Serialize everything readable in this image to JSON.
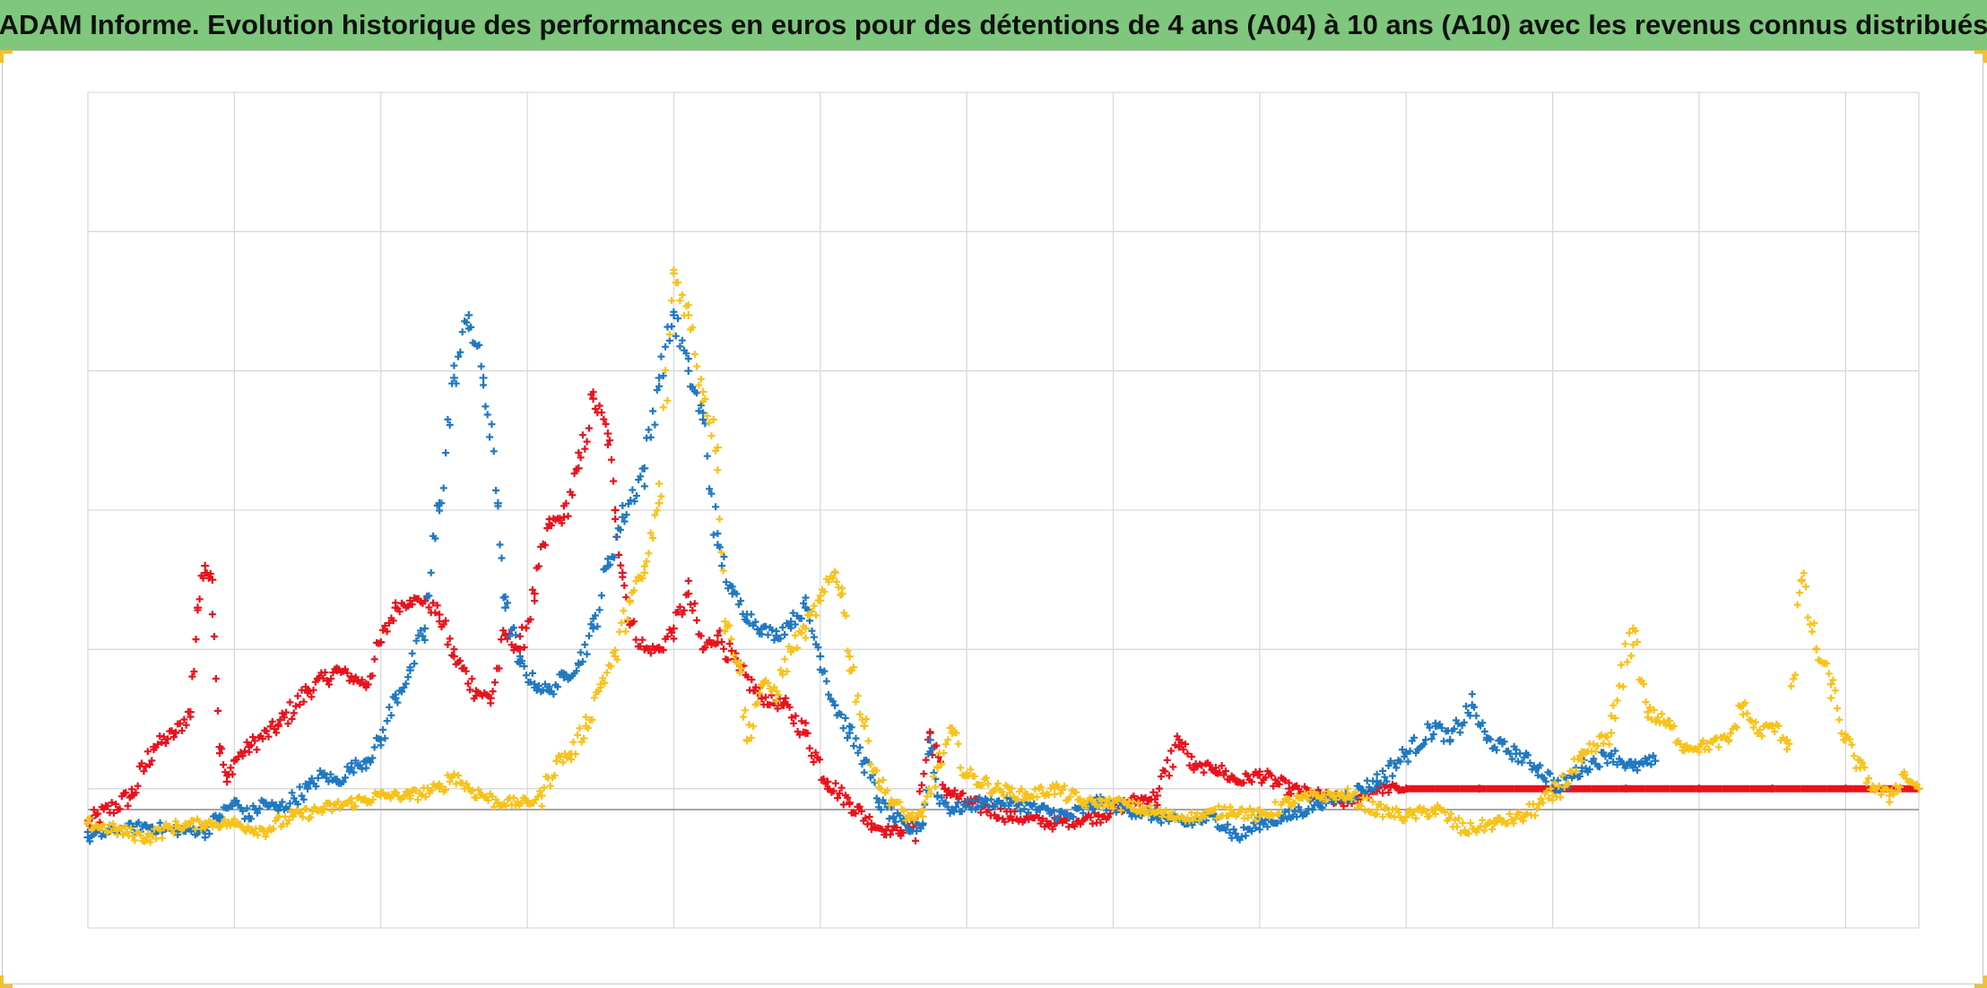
{
  "title": "ADAM Informe. Evolution historique des performances en euros pour des détentions de 4 ans (A04) à 10 ans (A10) avec les revenus connus distribués",
  "colors": {
    "title_bar": "#7ec77c",
    "frame_corner": "#f2c12e",
    "grid": "#d9d9d9",
    "zero_line": "#a6a6a6",
    "red": "#e8121d",
    "blue": "#1f78c1",
    "yellow": "#f7c21a"
  },
  "chart_data": {
    "type": "scatter",
    "marker": "plus",
    "title": "ADAM Informe. Evolution historique des performances en euros pour des détentions de 4 ans (A04) à 10 ans (A10) avec les revenus connus distribués",
    "xlabel": "",
    "ylabel": "",
    "xlim": [
      0,
      12.5
    ],
    "ylim": [
      -0.85,
      5.15
    ],
    "x_gridlines": [
      0,
      1,
      2,
      3,
      4,
      5,
      6,
      7,
      8,
      9,
      10,
      11,
      12,
      12.5
    ],
    "y_gridlines": [
      -0.85,
      0.15,
      1.15,
      2.15,
      3.15,
      4.15,
      5.15
    ],
    "zero_line": 0,
    "grid": true,
    "legend": "none",
    "series": [
      {
        "color": "#e8121d",
        "points": [
          [
            0,
            -0.1
          ],
          [
            0.3,
            0.1
          ],
          [
            0.45,
            0.45
          ],
          [
            0.6,
            0.55
          ],
          [
            0.7,
            0.7
          ],
          [
            0.75,
            1.45
          ],
          [
            0.8,
            1.75
          ],
          [
            0.85,
            1.65
          ],
          [
            0.9,
            0.45
          ],
          [
            0.95,
            0.2
          ],
          [
            1.0,
            0.35
          ],
          [
            1.1,
            0.45
          ],
          [
            1.3,
            0.6
          ],
          [
            1.5,
            0.85
          ],
          [
            1.7,
            1.0
          ],
          [
            1.8,
            0.95
          ],
          [
            1.9,
            0.9
          ],
          [
            2.0,
            1.2
          ],
          [
            2.1,
            1.45
          ],
          [
            2.2,
            1.5
          ],
          [
            2.3,
            1.5
          ],
          [
            2.4,
            1.4
          ],
          [
            2.5,
            1.1
          ],
          [
            2.65,
            0.85
          ],
          [
            2.75,
            0.8
          ],
          [
            2.85,
            1.25
          ],
          [
            2.95,
            1.15
          ],
          [
            3.05,
            1.55
          ],
          [
            3.15,
            2.05
          ],
          [
            3.25,
            2.1
          ],
          [
            3.35,
            2.45
          ],
          [
            3.45,
            2.95
          ],
          [
            3.55,
            2.7
          ],
          [
            3.6,
            2.15
          ],
          [
            3.65,
            1.7
          ],
          [
            3.7,
            1.35
          ],
          [
            3.8,
            1.15
          ],
          [
            3.9,
            1.15
          ],
          [
            4.0,
            1.3
          ],
          [
            4.1,
            1.55
          ],
          [
            4.2,
            1.15
          ],
          [
            4.3,
            1.25
          ],
          [
            4.45,
            1.0
          ],
          [
            4.6,
            0.8
          ],
          [
            4.75,
            0.75
          ],
          [
            4.9,
            0.55
          ],
          [
            5.05,
            0.2
          ],
          [
            5.2,
            0.05
          ],
          [
            5.35,
            -0.1
          ],
          [
            5.45,
            -0.15
          ],
          [
            5.55,
            -0.15
          ],
          [
            5.65,
            -0.1
          ],
          [
            5.75,
            0.55
          ],
          [
            5.85,
            0.15
          ],
          [
            6.0,
            0.05
          ],
          [
            6.3,
            -0.05
          ],
          [
            6.6,
            -0.1
          ],
          [
            6.9,
            -0.05
          ],
          [
            7.1,
            0.05
          ],
          [
            7.3,
            0.1
          ],
          [
            7.45,
            0.5
          ],
          [
            7.55,
            0.3
          ],
          [
            7.7,
            0.3
          ],
          [
            7.85,
            0.2
          ],
          [
            8.0,
            0.25
          ],
          [
            8.2,
            0.15
          ],
          [
            8.4,
            0.1
          ],
          [
            8.6,
            0.05
          ],
          [
            8.7,
            0.1
          ],
          [
            8.8,
            0.15
          ],
          [
            9.0,
            0.15
          ],
          [
            9.5,
            0.15
          ],
          [
            10.0,
            0.15
          ],
          [
            10.5,
            0.15
          ],
          [
            11.0,
            0.15
          ],
          [
            11.5,
            0.15
          ],
          [
            12.0,
            0.15
          ],
          [
            12.5,
            0.15
          ]
        ]
      },
      {
        "color": "#1f78c1",
        "points": [
          [
            0,
            -0.2
          ],
          [
            0.2,
            -0.15
          ],
          [
            0.4,
            -0.12
          ],
          [
            0.6,
            -0.15
          ],
          [
            0.8,
            -0.15
          ],
          [
            0.9,
            -0.05
          ],
          [
            1.0,
            0.05
          ],
          [
            1.1,
            -0.05
          ],
          [
            1.2,
            0.05
          ],
          [
            1.3,
            0.0
          ],
          [
            1.5,
            0.15
          ],
          [
            1.6,
            0.25
          ],
          [
            1.7,
            0.2
          ],
          [
            1.8,
            0.3
          ],
          [
            1.9,
            0.35
          ],
          [
            2.0,
            0.5
          ],
          [
            2.1,
            0.8
          ],
          [
            2.2,
            1.0
          ],
          [
            2.3,
            1.3
          ],
          [
            2.4,
            2.2
          ],
          [
            2.5,
            3.1
          ],
          [
            2.6,
            3.55
          ],
          [
            2.7,
            3.1
          ],
          [
            2.8,
            2.2
          ],
          [
            2.85,
            1.45
          ],
          [
            2.95,
            1.05
          ],
          [
            3.05,
            0.9
          ],
          [
            3.15,
            0.85
          ],
          [
            3.25,
            0.95
          ],
          [
            3.35,
            1.05
          ],
          [
            3.45,
            1.3
          ],
          [
            3.55,
            1.75
          ],
          [
            3.65,
            2.1
          ],
          [
            3.8,
            2.45
          ],
          [
            3.9,
            3.1
          ],
          [
            4.0,
            3.55
          ],
          [
            4.1,
            3.15
          ],
          [
            4.2,
            2.8
          ],
          [
            4.3,
            1.9
          ],
          [
            4.4,
            1.55
          ],
          [
            4.5,
            1.4
          ],
          [
            4.6,
            1.3
          ],
          [
            4.7,
            1.25
          ],
          [
            4.8,
            1.35
          ],
          [
            4.9,
            1.45
          ],
          [
            5.0,
            1.1
          ],
          [
            5.1,
            0.75
          ],
          [
            5.2,
            0.55
          ],
          [
            5.3,
            0.35
          ],
          [
            5.4,
            0.05
          ],
          [
            5.5,
            -0.05
          ],
          [
            5.6,
            -0.15
          ],
          [
            5.7,
            -0.1
          ],
          [
            5.75,
            0.5
          ],
          [
            5.8,
            0.1
          ],
          [
            5.9,
            0.0
          ],
          [
            6.1,
            0.05
          ],
          [
            6.3,
            0.05
          ],
          [
            6.5,
            0.0
          ],
          [
            6.7,
            -0.05
          ],
          [
            6.9,
            0.05
          ],
          [
            7.1,
            0.0
          ],
          [
            7.3,
            -0.05
          ],
          [
            7.5,
            -0.1
          ],
          [
            7.7,
            -0.05
          ],
          [
            7.85,
            -0.2
          ],
          [
            8.0,
            -0.1
          ],
          [
            8.2,
            -0.05
          ],
          [
            8.4,
            0.05
          ],
          [
            8.6,
            0.1
          ],
          [
            8.8,
            0.2
          ],
          [
            9.0,
            0.4
          ],
          [
            9.2,
            0.6
          ],
          [
            9.3,
            0.5
          ],
          [
            9.45,
            0.75
          ],
          [
            9.55,
            0.5
          ],
          [
            9.75,
            0.4
          ],
          [
            9.9,
            0.3
          ],
          [
            10.05,
            0.15
          ],
          [
            10.2,
            0.3
          ],
          [
            10.4,
            0.4
          ],
          [
            10.55,
            0.3
          ],
          [
            10.7,
            0.35
          ]
        ]
      },
      {
        "color": "#f7c21a",
        "points": [
          [
            0,
            -0.1
          ],
          [
            0.2,
            -0.15
          ],
          [
            0.4,
            -0.2
          ],
          [
            0.6,
            -0.12
          ],
          [
            0.8,
            -0.1
          ],
          [
            1.0,
            -0.1
          ],
          [
            1.2,
            -0.15
          ],
          [
            1.4,
            -0.05
          ],
          [
            1.6,
            0.0
          ],
          [
            1.8,
            0.05
          ],
          [
            2.0,
            0.1
          ],
          [
            2.2,
            0.1
          ],
          [
            2.4,
            0.15
          ],
          [
            2.5,
            0.25
          ],
          [
            2.6,
            0.15
          ],
          [
            2.8,
            0.05
          ],
          [
            3.0,
            0.05
          ],
          [
            3.1,
            0.1
          ],
          [
            3.2,
            0.35
          ],
          [
            3.3,
            0.4
          ],
          [
            3.4,
            0.6
          ],
          [
            3.5,
            0.9
          ],
          [
            3.6,
            1.1
          ],
          [
            3.7,
            1.5
          ],
          [
            3.8,
            1.7
          ],
          [
            3.9,
            2.2
          ],
          [
            4.0,
            3.85
          ],
          [
            4.1,
            3.55
          ],
          [
            4.2,
            3.0
          ],
          [
            4.3,
            2.6
          ],
          [
            4.35,
            1.35
          ],
          [
            4.45,
            1.05
          ],
          [
            4.5,
            0.5
          ],
          [
            4.6,
            0.9
          ],
          [
            4.7,
            0.85
          ],
          [
            4.8,
            1.15
          ],
          [
            4.9,
            1.3
          ],
          [
            5.0,
            1.5
          ],
          [
            5.1,
            1.7
          ],
          [
            5.15,
            1.55
          ],
          [
            5.2,
            1.1
          ],
          [
            5.3,
            0.6
          ],
          [
            5.4,
            0.2
          ],
          [
            5.5,
            0.05
          ],
          [
            5.6,
            -0.05
          ],
          [
            5.7,
            -0.05
          ],
          [
            5.8,
            0.3
          ],
          [
            5.9,
            0.55
          ],
          [
            6.0,
            0.25
          ],
          [
            6.2,
            0.15
          ],
          [
            6.4,
            0.1
          ],
          [
            6.6,
            0.15
          ],
          [
            6.8,
            0.05
          ],
          [
            7.0,
            0.05
          ],
          [
            7.2,
            0.0
          ],
          [
            7.4,
            -0.05
          ],
          [
            7.6,
            -0.05
          ],
          [
            7.8,
            0.0
          ],
          [
            8.0,
            -0.05
          ],
          [
            8.2,
            0.05
          ],
          [
            8.4,
            0.1
          ],
          [
            8.6,
            0.1
          ],
          [
            8.8,
            0.0
          ],
          [
            9.0,
            -0.05
          ],
          [
            9.2,
            0.0
          ],
          [
            9.4,
            -0.15
          ],
          [
            9.6,
            -0.1
          ],
          [
            9.8,
            -0.05
          ],
          [
            10.0,
            0.1
          ],
          [
            10.2,
            0.35
          ],
          [
            10.4,
            0.55
          ],
          [
            10.55,
            1.3
          ],
          [
            10.65,
            0.7
          ],
          [
            10.8,
            0.6
          ],
          [
            10.9,
            0.45
          ],
          [
            11.0,
            0.45
          ],
          [
            11.2,
            0.5
          ],
          [
            11.3,
            0.75
          ],
          [
            11.4,
            0.55
          ],
          [
            11.5,
            0.6
          ],
          [
            11.6,
            0.5
          ],
          [
            11.7,
            1.65
          ],
          [
            11.8,
            1.15
          ],
          [
            11.9,
            0.9
          ],
          [
            12.0,
            0.5
          ],
          [
            12.1,
            0.3
          ],
          [
            12.2,
            0.15
          ],
          [
            12.3,
            0.1
          ],
          [
            12.4,
            0.25
          ],
          [
            12.5,
            0.15
          ]
        ]
      }
    ]
  }
}
